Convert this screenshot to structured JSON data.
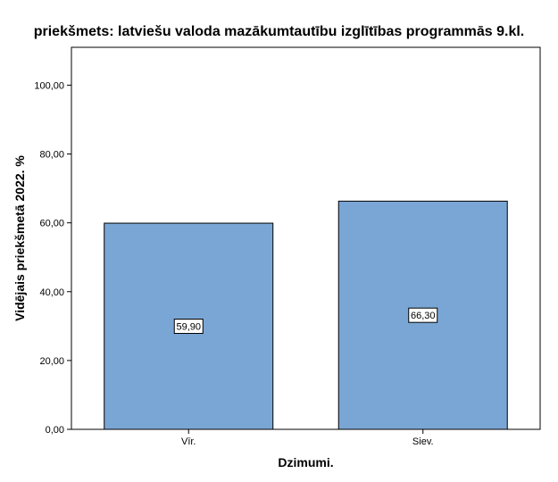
{
  "chart_data": {
    "type": "bar",
    "title": "priekšmets: latviešu valoda mazākumtautību izglītības programmās 9.kl.",
    "xlabel": "Dzimumi.",
    "ylabel": "Vidējais priekšmetā 2022. %",
    "categories": [
      "Vīr.",
      "Siev."
    ],
    "values": [
      59.9,
      66.3
    ],
    "data_labels": [
      "59,90",
      "66,30"
    ],
    "ylim": [
      0,
      111
    ],
    "yticks": [
      0,
      20,
      40,
      60,
      80,
      100
    ],
    "ytick_labels": [
      "0,00",
      "20,00",
      "40,00",
      "60,00",
      "80,00",
      "100,00"
    ],
    "grid": false,
    "legend": "none",
    "colors": {
      "bar": "#7aa6d5",
      "bar_stroke": "#000000",
      "plot_border": "#000000"
    }
  }
}
